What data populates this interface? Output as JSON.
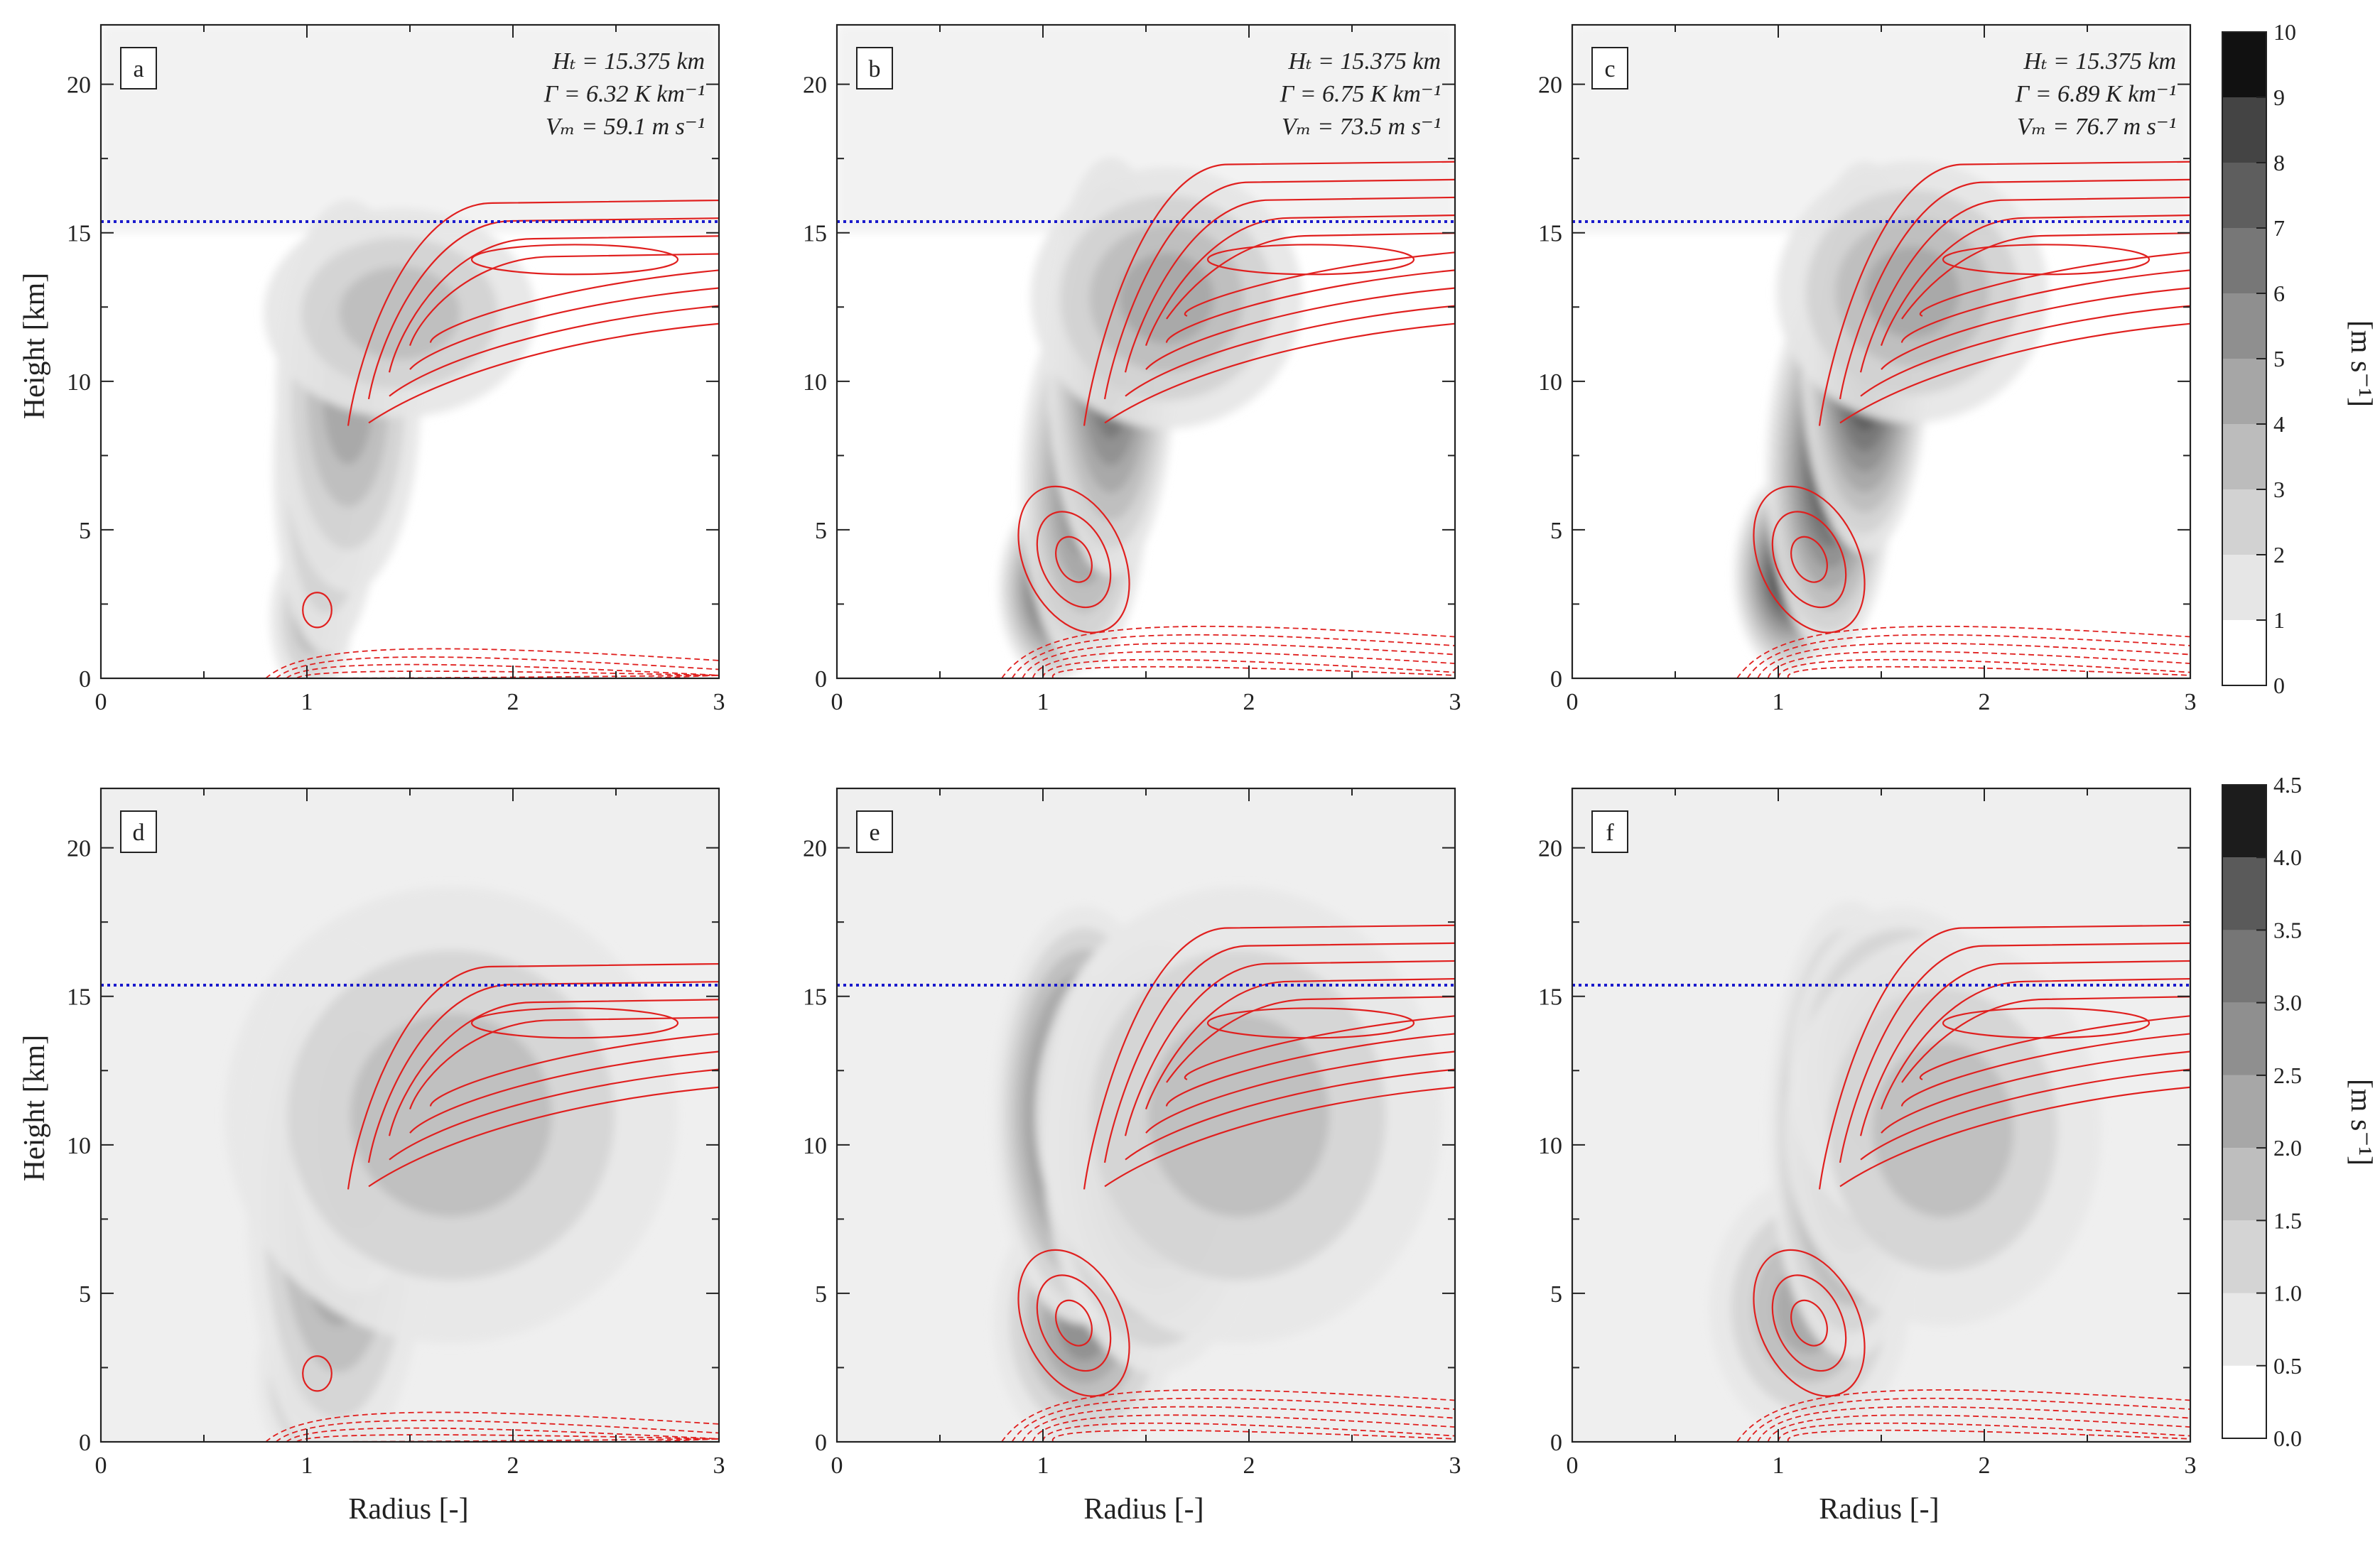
{
  "figure": {
    "ylabel": "Height [km]",
    "xlabel": "Radius [-]",
    "reference_line_height_km": 15.375
  },
  "colorbars": {
    "top": {
      "label": "[m s⁻¹]",
      "levels": [
        "0",
        "1",
        "2",
        "3",
        "4",
        "5",
        "6",
        "7",
        "8",
        "9",
        "10"
      ]
    },
    "bottom": {
      "label": "[m s⁻¹]",
      "levels": [
        "0.0",
        "0.5",
        "1.0",
        "1.5",
        "2.0",
        "2.5",
        "3.0",
        "3.5",
        "4.0",
        "4.5"
      ]
    }
  },
  "chart_data": [
    {
      "type": "heatmap",
      "panel": "a",
      "row": "top",
      "xlabel": "",
      "ylabel": "Height [km]",
      "xlim": [
        0,
        3
      ],
      "ylim": [
        0,
        22
      ],
      "xticks": [
        "0",
        "1",
        "2",
        "3"
      ],
      "yticks": [
        "0",
        "5",
        "10",
        "15",
        "20"
      ],
      "annotation": [
        "Hₜ = 15.375 km",
        "Γ = 6.32 K km⁻¹",
        "Vₘ = 59.1 m s⁻¹"
      ],
      "blobs": [
        {
          "r": 1.02,
          "z": 2.0,
          "sr": 0.09,
          "sz": 1.2,
          "v": 3
        },
        {
          "r": 1.1,
          "z": 7.0,
          "sr": 0.12,
          "sz": 2.8,
          "v": 4
        },
        {
          "r": 1.2,
          "z": 9.5,
          "sr": 0.16,
          "sz": 3.0,
          "v": 4
        },
        {
          "r": 1.45,
          "z": 12.3,
          "sr": 0.3,
          "sz": 1.6,
          "v": 3
        }
      ],
      "contours": "single_upper"
    },
    {
      "type": "heatmap",
      "panel": "b",
      "row": "top",
      "xlabel": "",
      "ylabel": "",
      "xlim": [
        0,
        3
      ],
      "ylim": [
        0,
        22
      ],
      "xticks": [
        "0",
        "1",
        "2",
        "3"
      ],
      "yticks": [
        "0",
        "5",
        "10",
        "15",
        "20"
      ],
      "annotation": [
        "Hₜ = 15.375 km",
        "Γ = 6.75 K km⁻¹",
        "Vₘ = 73.5 m s⁻¹"
      ],
      "blobs": [
        {
          "r": 1.05,
          "z": 3.0,
          "sr": 0.12,
          "sz": 1.4,
          "v": 8
        },
        {
          "r": 1.2,
          "z": 6.5,
          "sr": 0.14,
          "sz": 2.8,
          "v": 6
        },
        {
          "r": 1.33,
          "z": 10.5,
          "sr": 0.14,
          "sz": 3.2,
          "v": 7
        },
        {
          "r": 1.6,
          "z": 12.8,
          "sr": 0.3,
          "sz": 2.0,
          "v": 4
        }
      ],
      "contours": "double"
    },
    {
      "type": "heatmap",
      "panel": "c",
      "row": "top",
      "xlabel": "",
      "ylabel": "",
      "xlim": [
        0,
        3
      ],
      "ylim": [
        0,
        22
      ],
      "xticks": [
        "0",
        "1",
        "2",
        "3"
      ],
      "yticks": [
        "0",
        "5",
        "10",
        "15",
        "20"
      ],
      "annotation": [
        "Hₜ = 15.375 km",
        "Γ = 6.89 K km⁻¹",
        "Vₘ = 76.7 m s⁻¹"
      ],
      "blobs": [
        {
          "r": 1.05,
          "z": 3.5,
          "sr": 0.12,
          "sz": 1.5,
          "v": 9
        },
        {
          "r": 1.25,
          "z": 7.0,
          "sr": 0.14,
          "sz": 2.8,
          "v": 8
        },
        {
          "r": 1.42,
          "z": 10.8,
          "sr": 0.14,
          "sz": 3.0,
          "v": 9
        },
        {
          "r": 1.65,
          "z": 13.0,
          "sr": 0.3,
          "sz": 2.0,
          "v": 4
        }
      ],
      "contours": "double"
    },
    {
      "type": "heatmap",
      "panel": "d",
      "row": "bottom",
      "xlabel": "Radius [-]",
      "ylabel": "Height [km]",
      "xlim": [
        0,
        3
      ],
      "ylim": [
        0,
        22
      ],
      "xticks": [
        "0",
        "1",
        "2",
        "3"
      ],
      "yticks": [
        "0",
        "5",
        "10",
        "15",
        "20"
      ],
      "blobs": [
        {
          "r": 1.02,
          "z": 2.2,
          "sr": 0.12,
          "sz": 1.4,
          "v": 2.0
        },
        {
          "r": 1.15,
          "z": 8.0,
          "sr": 0.2,
          "sz": 4.0,
          "v": 2.5
        },
        {
          "r": 1.25,
          "z": 10.5,
          "sr": 0.15,
          "sz": 2.5,
          "v": 3.5
        },
        {
          "r": 1.7,
          "z": 11.0,
          "sr": 0.5,
          "sz": 3.5,
          "v": 1.5
        }
      ],
      "contours": "single_upper"
    },
    {
      "type": "heatmap",
      "panel": "e",
      "row": "bottom",
      "xlabel": "Radius [-]",
      "ylabel": "",
      "xlim": [
        0,
        3
      ],
      "ylim": [
        0,
        22
      ],
      "xticks": [
        "0",
        "1",
        "2",
        "3"
      ],
      "yticks": [
        "0",
        "5",
        "10",
        "15",
        "20"
      ],
      "blobs": [
        {
          "r": 1.2,
          "z": 4.0,
          "sr": 0.2,
          "sz": 2.0,
          "v": 2.5
        },
        {
          "r": 1.2,
          "z": 11.0,
          "sr": 0.2,
          "sz": 3.2,
          "v": 4.5
        },
        {
          "r": 1.55,
          "z": 10.0,
          "sr": 0.25,
          "sz": 3.5,
          "v": 4.0
        },
        {
          "r": 1.95,
          "z": 11.0,
          "sr": 0.45,
          "sz": 3.5,
          "v": 1.5
        }
      ],
      "contours": "double"
    },
    {
      "type": "heatmap",
      "panel": "f",
      "row": "bottom",
      "xlabel": "Radius [-]",
      "ylabel": "",
      "xlim": [
        0,
        3
      ],
      "ylim": [
        0,
        22
      ],
      "xticks": [
        "0",
        "1",
        "2",
        "3"
      ],
      "yticks": [
        "0",
        "5",
        "10",
        "15",
        "20"
      ],
      "blobs": [
        {
          "r": 1.15,
          "z": 4.5,
          "sr": 0.22,
          "sz": 2.0,
          "v": 2.0
        },
        {
          "r": 1.35,
          "z": 10.5,
          "sr": 0.18,
          "sz": 3.5,
          "v": 4.0
        },
        {
          "r": 1.6,
          "z": 12.5,
          "sr": 0.25,
          "sz": 2.5,
          "v": 3.5
        },
        {
          "r": 1.8,
          "z": 10.5,
          "sr": 0.35,
          "sz": 3.0,
          "v": 1.5
        }
      ],
      "contours": "double"
    }
  ]
}
